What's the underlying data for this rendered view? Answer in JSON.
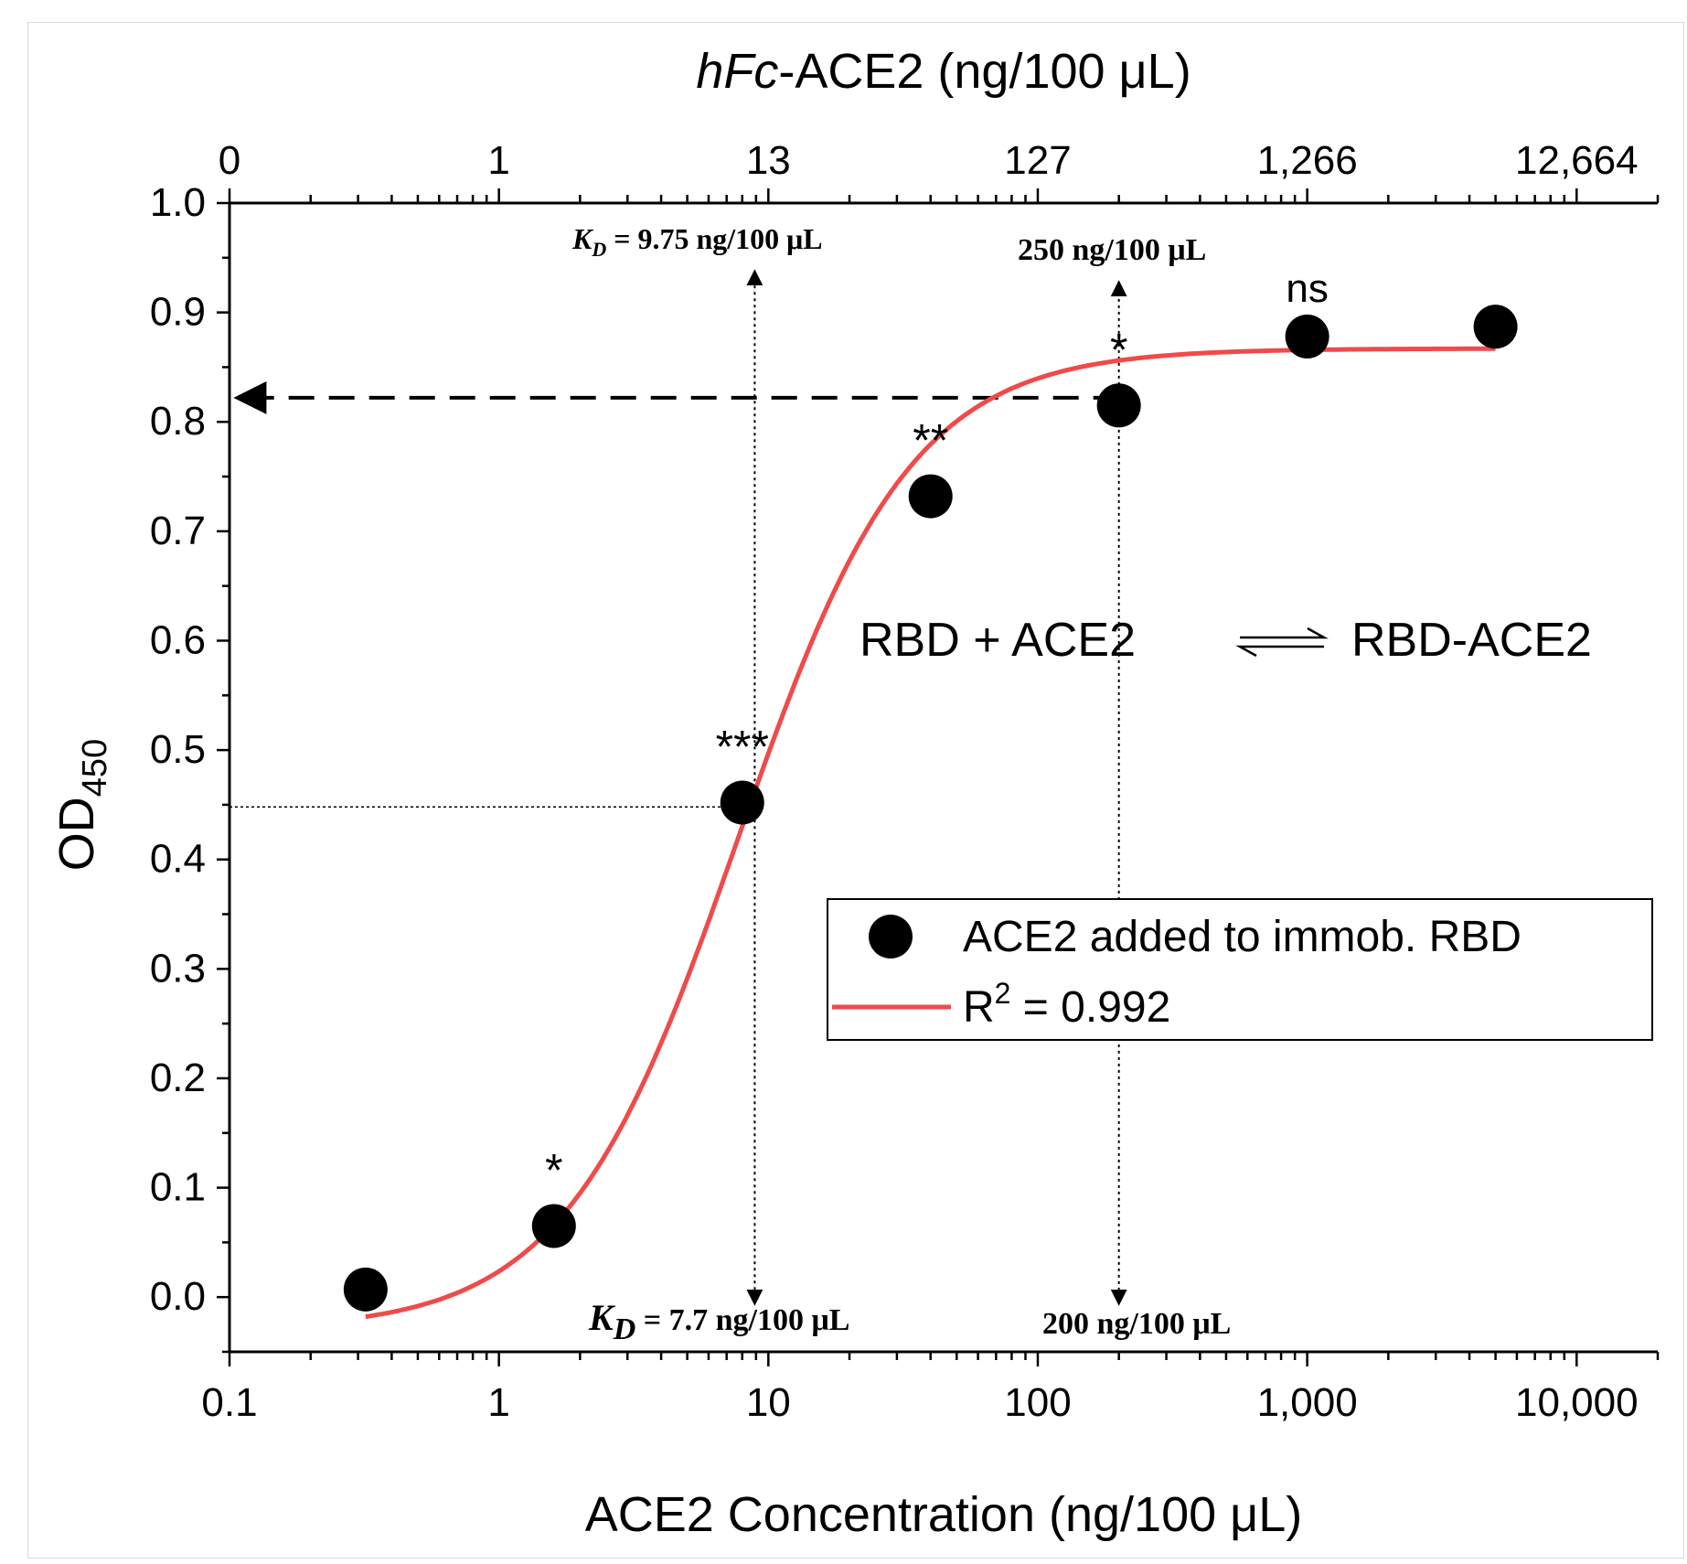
{
  "chart_data": {
    "type": "scatter",
    "y_axis": {
      "label": "OD",
      "label_subscript": "450",
      "range": [
        -0.05,
        1.0
      ],
      "ticks": [
        "0.0",
        "0.1",
        "0.2",
        "0.3",
        "0.4",
        "0.5",
        "0.6",
        "0.7",
        "0.8",
        "0.9",
        "1.0"
      ],
      "tick_values": [
        0,
        0.1,
        0.2,
        0.3,
        0.4,
        0.5,
        0.6,
        0.7,
        0.8,
        0.9,
        1.0
      ]
    },
    "x_axis": {
      "label": "ACE2 Concentration (ng/100 μL)",
      "scale": "log",
      "range": [
        0.1,
        20000
      ],
      "ticks": [
        "0.1",
        "1",
        "10",
        "100",
        "1,000",
        "10,000"
      ],
      "tick_values": [
        0.1,
        1,
        10,
        100,
        1000,
        10000
      ]
    },
    "top_axis": {
      "label_italic": "hFc",
      "label_rest": "-ACE2 (ng/100 μL)",
      "ticks": [
        "0",
        "1",
        "13",
        "127",
        "1,266",
        "12,664"
      ]
    },
    "series": [
      {
        "name": "ACE2 added to immob. RBD",
        "points": [
          {
            "x": 0.32,
            "y": 0.007,
            "sig": ""
          },
          {
            "x": 1.6,
            "y": 0.065,
            "sig": "*"
          },
          {
            "x": 8.0,
            "y": 0.452,
            "sig": "***"
          },
          {
            "x": 40,
            "y": 0.732,
            "sig": "**"
          },
          {
            "x": 200,
            "y": 0.815,
            "sig": "*"
          },
          {
            "x": 1000,
            "y": 0.878,
            "sig": "ns"
          },
          {
            "x": 5000,
            "y": 0.887,
            "sig": ""
          }
        ]
      }
    ],
    "fit": {
      "name_prefix": "R",
      "name_sup": "2",
      "name_rest": " = 0.992",
      "model": "logistic",
      "bottom": -0.03,
      "top": 0.867,
      "ec50": 7.7,
      "hill": 1.35,
      "x_range": [
        0.32,
        5000
      ]
    },
    "annotations": {
      "kd_top_symbol": "K",
      "kd_top_sub": "D",
      "kd_top_rest": " = 9.75 ng/100 μL",
      "kd_bottom_symbol": "K",
      "kd_bottom_sub": "D",
      "kd_bottom_rest": " = 7.7 ng/100 μL",
      "conc_top": "250 ng/100 μL",
      "conc_bottom": "200 ng/100 μL",
      "equation_left": "RBD + ACE2",
      "equation_right": "RBD-ACE2",
      "kd_x": 8.9,
      "kd_y": 0.448,
      "sat_x": 200,
      "sat_y": 0.822
    },
    "grid": false,
    "legend_position": "center-right",
    "colors": {
      "points": "#000000",
      "fit": "#f04a4a",
      "axes": "#000000"
    }
  }
}
